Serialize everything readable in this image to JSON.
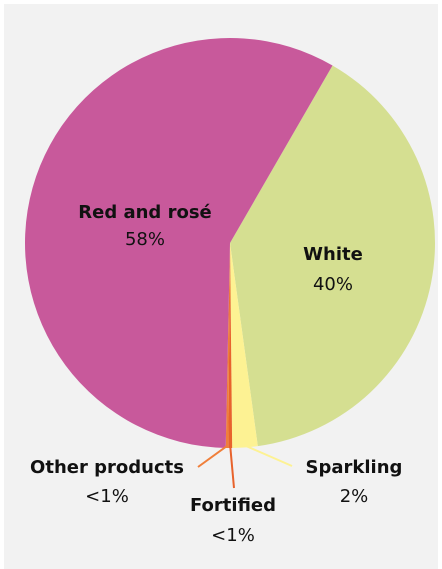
{
  "chart_data": {
    "type": "pie",
    "slices": [
      {
        "label": "White",
        "value_label": "40%",
        "value": 39.5,
        "color": "#d5df91"
      },
      {
        "label": "Sparkling",
        "value_label": "2%",
        "value": 2.0,
        "color": "#fdf293"
      },
      {
        "label": "Fortified",
        "value_label": "<1%",
        "value": 0.3,
        "color": "#e8632c"
      },
      {
        "label": "Other products",
        "value_label": "<1%",
        "value": 0.2,
        "color": "#f07f3a"
      },
      {
        "label": "Red and rosé",
        "value_label": "58%",
        "value": 58.0,
        "color": "#c8599b"
      }
    ],
    "start_angle_deg": 30,
    "direction": "clockwise",
    "background": "#f2f2f2",
    "leader_line_colors": {
      "Sparkling": "#fdf293",
      "Fortified": "#e8632c",
      "Other products": "#f07f3a"
    }
  }
}
